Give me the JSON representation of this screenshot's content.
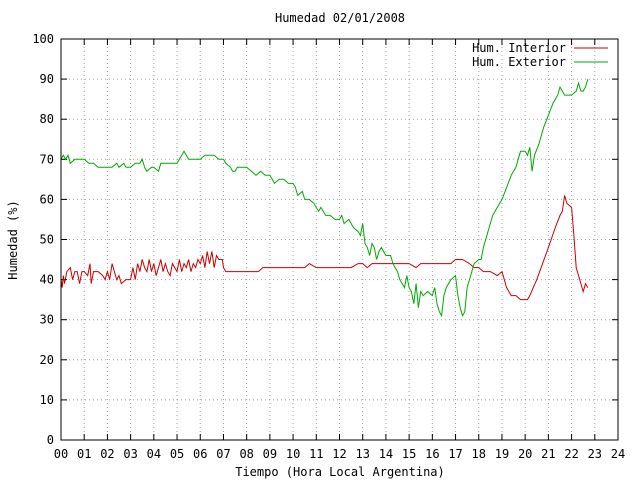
{
  "chart_data": {
    "type": "line",
    "title": "Humedad 02/01/2008",
    "xlabel": "Tiempo (Hora Local Argentina)",
    "ylabel": "Humedad (%)",
    "xlim": [
      0,
      24
    ],
    "ylim": [
      0,
      100
    ],
    "x_ticks": [
      "00",
      "01",
      "02",
      "03",
      "04",
      "05",
      "06",
      "07",
      "08",
      "09",
      "10",
      "11",
      "12",
      "13",
      "14",
      "15",
      "16",
      "17",
      "18",
      "19",
      "20",
      "21",
      "22",
      "23",
      "24"
    ],
    "y_ticks": [
      "0",
      "10",
      "20",
      "30",
      "40",
      "50",
      "60",
      "70",
      "80",
      "90",
      "100"
    ],
    "grid": true,
    "legend_position": "top-right",
    "series": [
      {
        "name": "Hum. Interior",
        "color": "#cc0000",
        "points": [
          [
            0.0,
            40
          ],
          [
            0.05,
            38
          ],
          [
            0.1,
            41
          ],
          [
            0.15,
            39
          ],
          [
            0.25,
            42
          ],
          [
            0.4,
            43
          ],
          [
            0.5,
            40
          ],
          [
            0.6,
            42
          ],
          [
            0.7,
            42
          ],
          [
            0.8,
            39
          ],
          [
            0.9,
            42
          ],
          [
            1.0,
            42
          ],
          [
            1.15,
            41
          ],
          [
            1.25,
            44
          ],
          [
            1.3,
            39
          ],
          [
            1.4,
            42
          ],
          [
            1.6,
            42
          ],
          [
            1.8,
            41
          ],
          [
            1.9,
            40
          ],
          [
            2.0,
            42
          ],
          [
            2.1,
            40
          ],
          [
            2.2,
            44
          ],
          [
            2.3,
            42
          ],
          [
            2.4,
            40
          ],
          [
            2.5,
            41
          ],
          [
            2.6,
            39
          ],
          [
            2.8,
            40
          ],
          [
            3.0,
            40
          ],
          [
            3.1,
            43
          ],
          [
            3.2,
            40
          ],
          [
            3.3,
            44
          ],
          [
            3.4,
            42
          ],
          [
            3.5,
            45
          ],
          [
            3.6,
            43
          ],
          [
            3.7,
            42
          ],
          [
            3.8,
            45
          ],
          [
            3.9,
            42
          ],
          [
            4.0,
            44
          ],
          [
            4.1,
            41
          ],
          [
            4.2,
            43
          ],
          [
            4.3,
            45
          ],
          [
            4.4,
            42
          ],
          [
            4.5,
            44
          ],
          [
            4.6,
            42
          ],
          [
            4.7,
            41
          ],
          [
            4.8,
            44
          ],
          [
            4.9,
            43
          ],
          [
            5.0,
            42
          ],
          [
            5.1,
            45
          ],
          [
            5.2,
            42
          ],
          [
            5.3,
            44
          ],
          [
            5.4,
            43
          ],
          [
            5.5,
            45
          ],
          [
            5.6,
            42
          ],
          [
            5.7,
            44
          ],
          [
            5.8,
            43
          ],
          [
            5.9,
            45
          ],
          [
            6.0,
            44
          ],
          [
            6.1,
            46
          ],
          [
            6.2,
            43
          ],
          [
            6.3,
            47
          ],
          [
            6.4,
            44
          ],
          [
            6.5,
            47
          ],
          [
            6.6,
            43
          ],
          [
            6.7,
            46
          ],
          [
            6.8,
            45
          ],
          [
            6.95,
            45
          ],
          [
            7.0,
            43
          ],
          [
            7.1,
            42
          ],
          [
            7.5,
            42
          ],
          [
            8.0,
            42
          ],
          [
            8.5,
            42
          ],
          [
            8.7,
            43
          ],
          [
            9.0,
            43
          ],
          [
            9.5,
            43
          ],
          [
            10.0,
            43
          ],
          [
            10.5,
            43
          ],
          [
            10.7,
            44
          ],
          [
            11.0,
            43
          ],
          [
            11.5,
            43
          ],
          [
            12.0,
            43
          ],
          [
            12.5,
            43
          ],
          [
            12.8,
            44
          ],
          [
            13.0,
            44
          ],
          [
            13.2,
            43
          ],
          [
            13.4,
            44
          ],
          [
            14.0,
            44
          ],
          [
            14.5,
            44
          ],
          [
            15.0,
            44
          ],
          [
            15.3,
            43
          ],
          [
            15.5,
            44
          ],
          [
            16.0,
            44
          ],
          [
            16.5,
            44
          ],
          [
            16.8,
            44
          ],
          [
            17.0,
            45
          ],
          [
            17.3,
            45
          ],
          [
            17.6,
            44
          ],
          [
            17.8,
            43
          ],
          [
            18.0,
            43
          ],
          [
            18.2,
            42
          ],
          [
            18.5,
            42
          ],
          [
            18.8,
            41
          ],
          [
            19.0,
            42
          ],
          [
            19.2,
            38
          ],
          [
            19.4,
            36
          ],
          [
            19.6,
            36
          ],
          [
            19.8,
            35
          ],
          [
            20.0,
            35
          ],
          [
            20.1,
            35
          ],
          [
            20.2,
            36
          ],
          [
            20.5,
            40
          ],
          [
            21.0,
            48
          ],
          [
            21.3,
            53
          ],
          [
            21.5,
            56
          ],
          [
            21.6,
            57
          ],
          [
            21.7,
            61
          ],
          [
            21.8,
            59
          ],
          [
            22.0,
            58
          ],
          [
            22.1,
            51
          ],
          [
            22.2,
            43
          ],
          [
            22.4,
            39
          ],
          [
            22.5,
            37
          ],
          [
            22.6,
            39
          ],
          [
            22.7,
            38
          ]
        ]
      },
      {
        "name": "Hum. Exterior",
        "color": "#00aa00",
        "points": [
          [
            0.0,
            70
          ],
          [
            0.1,
            71
          ],
          [
            0.2,
            70
          ],
          [
            0.3,
            71
          ],
          [
            0.4,
            69
          ],
          [
            0.6,
            70
          ],
          [
            0.8,
            70
          ],
          [
            1.0,
            70
          ],
          [
            1.2,
            69
          ],
          [
            1.4,
            69
          ],
          [
            1.6,
            68
          ],
          [
            1.8,
            68
          ],
          [
            2.0,
            68
          ],
          [
            2.2,
            68
          ],
          [
            2.4,
            69
          ],
          [
            2.5,
            68
          ],
          [
            2.7,
            69
          ],
          [
            2.8,
            68
          ],
          [
            3.0,
            68
          ],
          [
            3.2,
            69
          ],
          [
            3.4,
            69
          ],
          [
            3.5,
            70
          ],
          [
            3.6,
            68
          ],
          [
            3.7,
            67
          ],
          [
            3.9,
            68
          ],
          [
            4.0,
            68
          ],
          [
            4.2,
            67
          ],
          [
            4.3,
            69
          ],
          [
            4.5,
            69
          ],
          [
            4.8,
            69
          ],
          [
            5.0,
            69
          ],
          [
            5.1,
            70
          ],
          [
            5.2,
            71
          ],
          [
            5.3,
            72
          ],
          [
            5.4,
            71
          ],
          [
            5.5,
            70
          ],
          [
            5.8,
            70
          ],
          [
            6.0,
            70
          ],
          [
            6.2,
            71
          ],
          [
            6.4,
            71
          ],
          [
            6.6,
            71
          ],
          [
            6.8,
            70
          ],
          [
            7.0,
            70
          ],
          [
            7.1,
            69
          ],
          [
            7.3,
            68
          ],
          [
            7.4,
            67
          ],
          [
            7.5,
            67
          ],
          [
            7.6,
            68
          ],
          [
            7.8,
            68
          ],
          [
            8.0,
            68
          ],
          [
            8.2,
            67
          ],
          [
            8.4,
            66
          ],
          [
            8.6,
            67
          ],
          [
            8.8,
            66
          ],
          [
            9.0,
            66
          ],
          [
            9.1,
            65
          ],
          [
            9.2,
            64
          ],
          [
            9.4,
            65
          ],
          [
            9.6,
            65
          ],
          [
            9.8,
            64
          ],
          [
            10.0,
            64
          ],
          [
            10.1,
            63
          ],
          [
            10.2,
            61
          ],
          [
            10.4,
            62
          ],
          [
            10.5,
            60
          ],
          [
            10.7,
            60
          ],
          [
            10.9,
            59
          ],
          [
            11.0,
            58
          ],
          [
            11.1,
            57
          ],
          [
            11.2,
            58
          ],
          [
            11.4,
            56
          ],
          [
            11.6,
            56
          ],
          [
            11.8,
            55
          ],
          [
            12.0,
            55
          ],
          [
            12.1,
            56
          ],
          [
            12.2,
            54
          ],
          [
            12.4,
            55
          ],
          [
            12.6,
            53
          ],
          [
            12.8,
            52
          ],
          [
            12.9,
            51
          ],
          [
            13.0,
            54
          ],
          [
            13.1,
            49
          ],
          [
            13.2,
            48
          ],
          [
            13.3,
            46
          ],
          [
            13.4,
            49
          ],
          [
            13.5,
            48
          ],
          [
            13.6,
            45
          ],
          [
            13.7,
            47
          ],
          [
            13.8,
            48
          ],
          [
            14.0,
            46
          ],
          [
            14.2,
            46
          ],
          [
            14.3,
            44
          ],
          [
            14.4,
            43
          ],
          [
            14.5,
            42
          ],
          [
            14.6,
            40
          ],
          [
            14.7,
            39
          ],
          [
            14.8,
            38
          ],
          [
            14.9,
            41
          ],
          [
            15.0,
            38
          ],
          [
            15.1,
            37
          ],
          [
            15.2,
            34
          ],
          [
            15.3,
            39
          ],
          [
            15.4,
            33
          ],
          [
            15.5,
            37
          ],
          [
            15.6,
            36
          ],
          [
            15.8,
            37
          ],
          [
            16.0,
            36
          ],
          [
            16.1,
            38
          ],
          [
            16.2,
            34
          ],
          [
            16.3,
            32
          ],
          [
            16.4,
            31
          ],
          [
            16.5,
            36
          ],
          [
            16.6,
            38
          ],
          [
            16.8,
            40
          ],
          [
            17.0,
            41
          ],
          [
            17.1,
            36
          ],
          [
            17.2,
            33
          ],
          [
            17.3,
            31
          ],
          [
            17.4,
            32
          ],
          [
            17.5,
            38
          ],
          [
            17.6,
            40
          ],
          [
            17.8,
            44
          ],
          [
            18.0,
            45
          ],
          [
            18.1,
            45
          ],
          [
            18.2,
            48
          ],
          [
            18.4,
            52
          ],
          [
            18.6,
            56
          ],
          [
            18.8,
            58
          ],
          [
            19.0,
            60
          ],
          [
            19.2,
            63
          ],
          [
            19.4,
            66
          ],
          [
            19.6,
            68
          ],
          [
            19.8,
            72
          ],
          [
            20.0,
            72
          ],
          [
            20.1,
            71
          ],
          [
            20.2,
            73
          ],
          [
            20.3,
            67
          ],
          [
            20.4,
            71
          ],
          [
            20.6,
            74
          ],
          [
            20.8,
            78
          ],
          [
            21.0,
            81
          ],
          [
            21.2,
            84
          ],
          [
            21.4,
            86
          ],
          [
            21.5,
            88
          ],
          [
            21.6,
            87
          ],
          [
            21.7,
            86
          ],
          [
            21.8,
            86
          ],
          [
            22.0,
            86
          ],
          [
            22.2,
            87
          ],
          [
            22.3,
            89
          ],
          [
            22.4,
            87
          ],
          [
            22.5,
            87
          ],
          [
            22.6,
            88
          ],
          [
            22.7,
            90
          ]
        ]
      }
    ]
  }
}
